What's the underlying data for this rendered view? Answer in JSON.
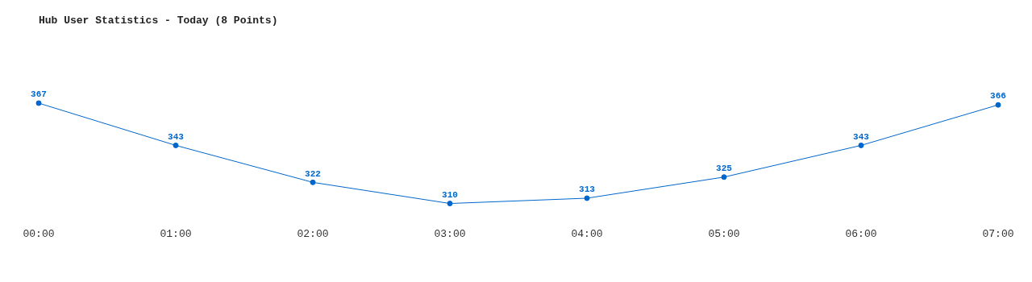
{
  "chart_data": {
    "type": "line",
    "title": "Hub User Statistics - Today (8 Points)",
    "categories": [
      "00:00",
      "01:00",
      "02:00",
      "03:00",
      "04:00",
      "05:00",
      "06:00",
      "07:00"
    ],
    "series": [
      {
        "color": "#0066cc",
        "values": [
          367,
          343,
          322,
          310,
          313,
          325,
          343,
          366
        ]
      }
    ],
    "data_labels": true,
    "marker": "circle"
  }
}
